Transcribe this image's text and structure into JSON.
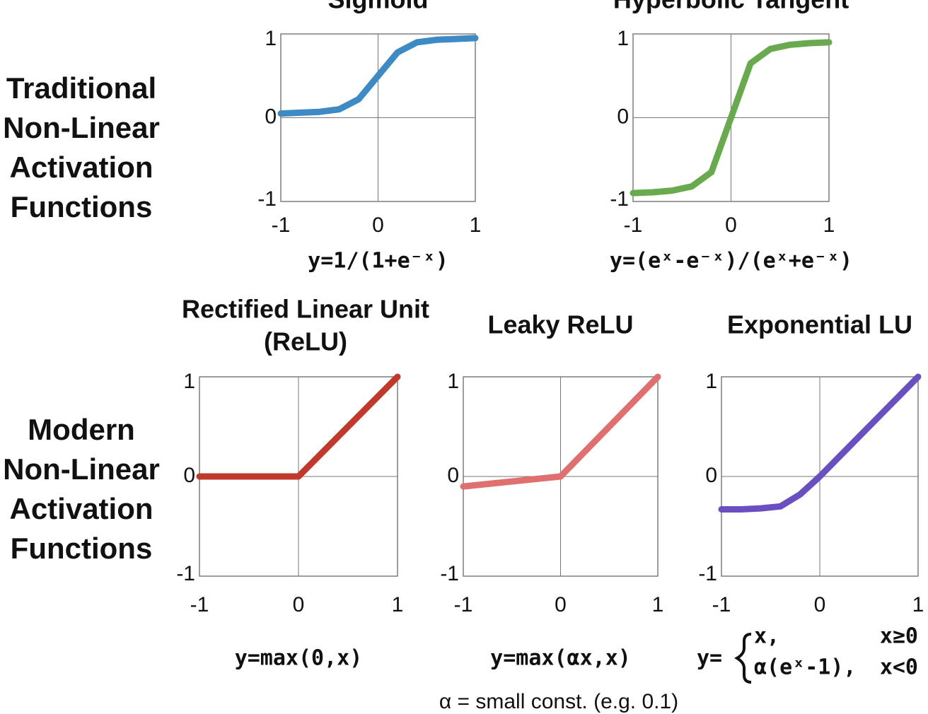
{
  "row_labels": [
    [
      "Traditional",
      "Non-Linear",
      "Activation",
      "Functions"
    ],
    [
      "Modern",
      "Non-Linear",
      "Activation",
      "Functions"
    ]
  ],
  "footnote": "α = small const. (e.g. 0.1)",
  "chart_data": [
    {
      "type": "line",
      "title": "Sigmoid",
      "formula": "y=1/(1+e⁻ˣ)",
      "x": [
        -1,
        -0.8,
        -0.6,
        -0.4,
        -0.2,
        0,
        0.2,
        0.4,
        0.6,
        0.8,
        1
      ],
      "values": [
        0.05,
        0.06,
        0.07,
        0.1,
        0.22,
        0.5,
        0.78,
        0.9,
        0.93,
        0.94,
        0.95
      ],
      "color": "#3d8ac4",
      "xlim": [
        -1,
        1
      ],
      "ylim": [
        -1,
        1
      ],
      "xticks": [
        -1,
        0,
        1
      ],
      "yticks": [
        -1,
        0,
        1
      ],
      "grid": true
    },
    {
      "type": "line",
      "title": "Hyperbolic Tangent",
      "formula": "y=(eˣ-e⁻ˣ)/(eˣ+e⁻ˣ)",
      "x": [
        -1,
        -0.8,
        -0.6,
        -0.4,
        -0.2,
        0,
        0.2,
        0.4,
        0.6,
        0.8,
        1
      ],
      "values": [
        -0.9,
        -0.89,
        -0.87,
        -0.82,
        -0.65,
        0,
        0.65,
        0.82,
        0.87,
        0.89,
        0.9
      ],
      "color": "#6aaa4f",
      "xlim": [
        -1,
        1
      ],
      "ylim": [
        -1,
        1
      ],
      "xticks": [
        -1,
        0,
        1
      ],
      "yticks": [
        -1,
        0,
        1
      ],
      "grid": true
    },
    {
      "type": "line",
      "title": [
        "Rectified Linear Unit",
        "(ReLU)"
      ],
      "formula": "y=max(0,x)",
      "x": [
        -1,
        0,
        1
      ],
      "values": [
        0,
        0,
        1
      ],
      "color": "#c0392b",
      "xlim": [
        -1,
        1
      ],
      "ylim": [
        -1,
        1
      ],
      "xticks": [
        -1,
        0,
        1
      ],
      "yticks": [
        -1,
        0,
        1
      ],
      "grid": true
    },
    {
      "type": "line",
      "title": "Leaky ReLU",
      "formula": "y=max(αx,x)",
      "x": [
        -1,
        0,
        1
      ],
      "values": [
        -0.1,
        0,
        1
      ],
      "color": "#e07070",
      "xlim": [
        -1,
        1
      ],
      "ylim": [
        -1,
        1
      ],
      "xticks": [
        -1,
        0,
        1
      ],
      "yticks": [
        -1,
        0,
        1
      ],
      "grid": true
    },
    {
      "type": "line",
      "title": "Exponential LU",
      "formula": "y=",
      "cases": [
        [
          "x,",
          "x≥0"
        ],
        [
          "α(eˣ-1),",
          "x<0"
        ]
      ],
      "x": [
        -1,
        -0.8,
        -0.6,
        -0.4,
        -0.2,
        0,
        0.5,
        1
      ],
      "values": [
        -0.33,
        -0.33,
        -0.32,
        -0.3,
        -0.18,
        0,
        0.5,
        1
      ],
      "color": "#6a4fc0",
      "xlim": [
        -1,
        1
      ],
      "ylim": [
        -1,
        1
      ],
      "xticks": [
        -1,
        0,
        1
      ],
      "yticks": [
        -1,
        0,
        1
      ],
      "grid": true
    }
  ]
}
